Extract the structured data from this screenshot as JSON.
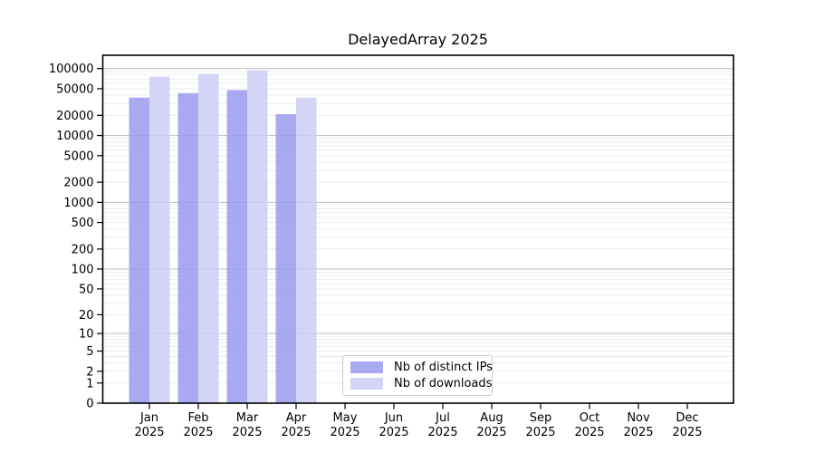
{
  "chart_data": {
    "type": "bar",
    "title": "DelayedArray 2025",
    "xlabel": "",
    "ylabel": "",
    "year_label": "2025",
    "categories": [
      "Jan",
      "Feb",
      "Mar",
      "Apr",
      "May",
      "Jun",
      "Jul",
      "Aug",
      "Sep",
      "Oct",
      "Nov",
      "Dec"
    ],
    "series": [
      {
        "name": "Nb of distinct IPs",
        "color": "#9a9aee",
        "values": [
          36800,
          43000,
          47800,
          20800,
          null,
          null,
          null,
          null,
          null,
          null,
          null,
          null
        ]
      },
      {
        "name": "Nb of downloads",
        "color": "#ccccf5",
        "values": [
          75500,
          83000,
          94000,
          36800,
          null,
          null,
          null,
          null,
          null,
          null,
          null,
          null
        ]
      }
    ],
    "yticks": [
      0,
      1,
      2,
      5,
      10,
      20,
      50,
      100,
      200,
      500,
      1000,
      2000,
      5000,
      10000,
      20000,
      50000,
      100000
    ],
    "y_scale": "log10(value+1)",
    "ylim": [
      0,
      100000
    ],
    "grid": "horizontal, log minor + major lines",
    "legend_position": "inside axes, lower center-left"
  },
  "colors": {
    "grid_minor": "#eaeaea",
    "grid_major": "#c4c4c4",
    "axis_spine": "#000000",
    "tick_text": "#000000",
    "background": "#ffffff"
  }
}
